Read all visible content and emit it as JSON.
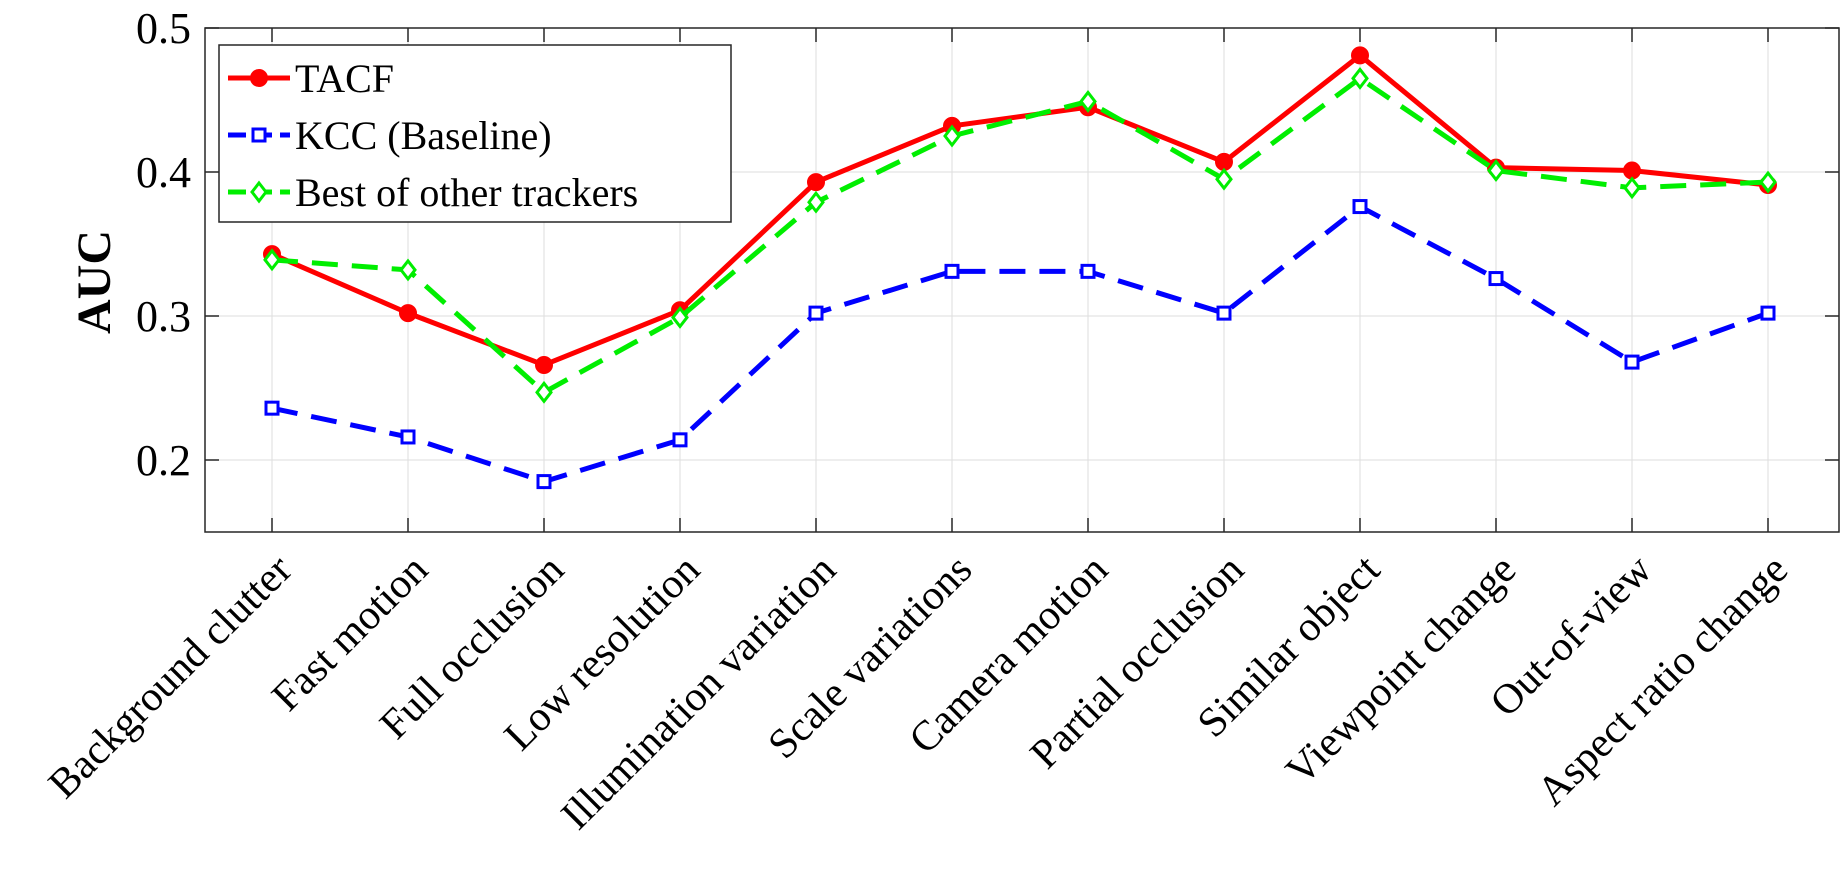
{
  "chart_data": {
    "type": "line",
    "title": "",
    "xlabel": "",
    "ylabel": "AUC",
    "ylim": [
      0.15,
      0.5
    ],
    "yticks": [
      "0.2",
      "0.3",
      "0.4",
      "0.5"
    ],
    "grid": true,
    "legend_position": "top-left",
    "categories": [
      "Background clutter",
      "Fast motion",
      "Full occlusion",
      "Low resolution",
      "Illumination variation",
      "Scale variations",
      "Camera motion",
      "Partial occlusion",
      "Similar object",
      "Viewpoint change",
      "Out-of-view",
      "Aspect ratio change"
    ],
    "series": [
      {
        "name": "TACF",
        "color": "#ff0000",
        "line": "solid",
        "marker": "filled-circle",
        "values": [
          0.343,
          0.302,
          0.266,
          0.304,
          0.393,
          0.432,
          0.445,
          0.407,
          0.481,
          0.403,
          0.401,
          0.391
        ]
      },
      {
        "name": "KCC (Baseline)",
        "color": "#0000ff",
        "line": "dashed",
        "marker": "open-square",
        "values": [
          0.236,
          0.216,
          0.185,
          0.214,
          0.302,
          0.331,
          0.331,
          0.302,
          0.376,
          0.326,
          0.268,
          0.302
        ]
      },
      {
        "name": "Best of other trackers",
        "color": "#00ee00",
        "line": "dashed",
        "marker": "open-diamond",
        "values": [
          0.339,
          0.332,
          0.247,
          0.299,
          0.379,
          0.425,
          0.449,
          0.395,
          0.465,
          0.401,
          0.389,
          0.393
        ]
      }
    ]
  }
}
